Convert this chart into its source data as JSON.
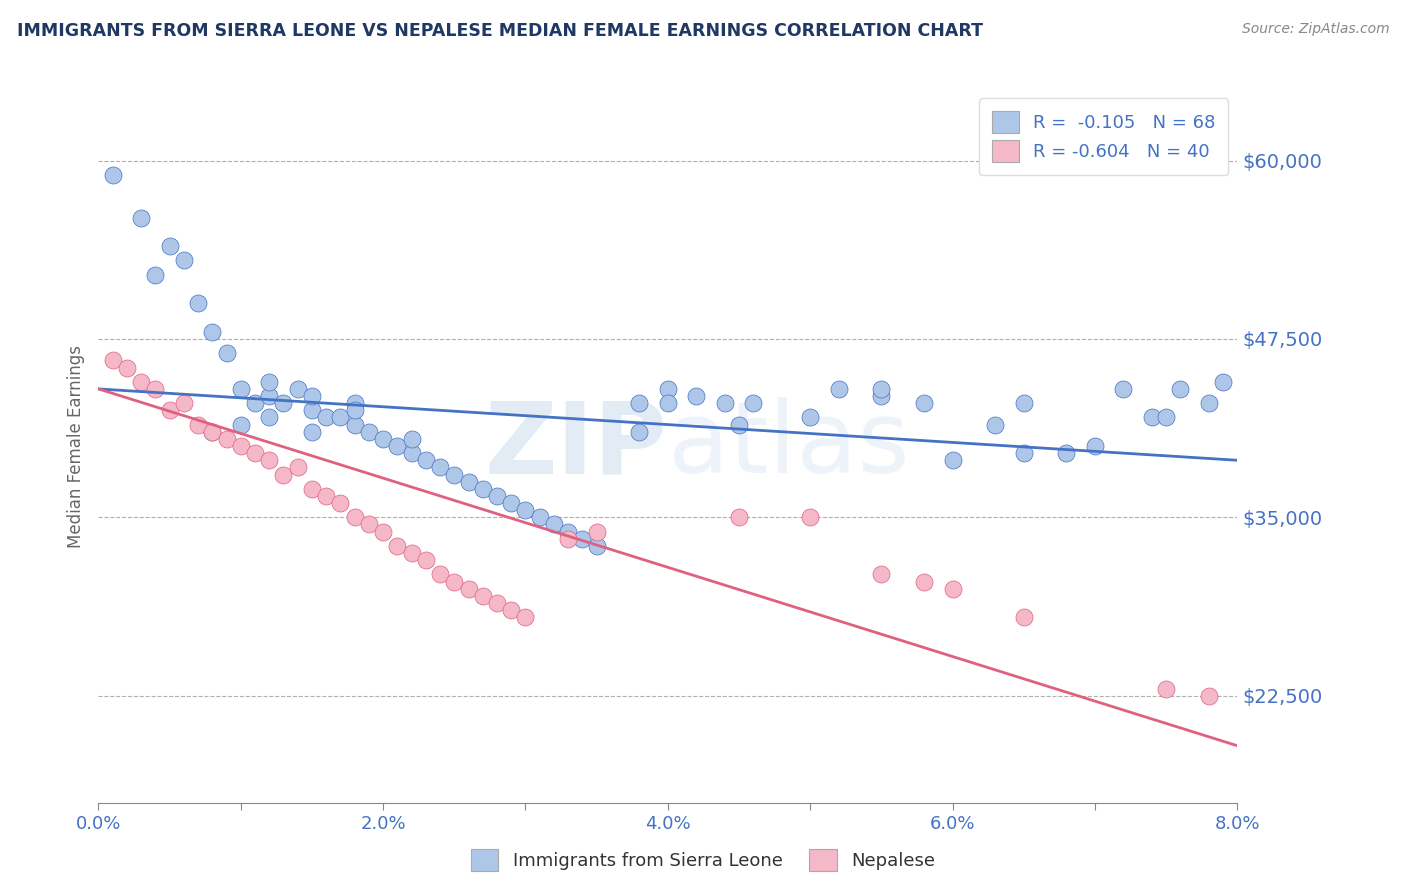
{
  "title": "IMMIGRANTS FROM SIERRA LEONE VS NEPALESE MEDIAN FEMALE EARNINGS CORRELATION CHART",
  "source": "Source: ZipAtlas.com",
  "ylabel": "Median Female Earnings",
  "xmin": 0.0,
  "xmax": 0.08,
  "ymin": 15000,
  "ymax": 65000,
  "yticks": [
    22500,
    35000,
    47500,
    60000
  ],
  "ytick_labels": [
    "$22,500",
    "$35,000",
    "$47,500",
    "$60,000"
  ],
  "xticks": [
    0.0,
    0.01,
    0.02,
    0.03,
    0.04,
    0.05,
    0.06,
    0.07,
    0.08
  ],
  "xtick_labels": [
    "0.0%",
    "",
    "2.0%",
    "",
    "4.0%",
    "",
    "6.0%",
    "",
    "8.0%"
  ],
  "blue_color": "#aec6e8",
  "blue_line_color": "#4472c4",
  "pink_color": "#f4b8c8",
  "pink_line_color": "#e06080",
  "legend_R1": "-0.105",
  "legend_N1": "68",
  "legend_R2": "-0.604",
  "legend_N2": "40",
  "legend_label1": "Immigrants from Sierra Leone",
  "legend_label2": "Nepalese",
  "blue_trend_x": [
    0.0,
    0.08
  ],
  "blue_trend_y": [
    44000,
    39000
  ],
  "pink_trend_x": [
    0.0,
    0.08
  ],
  "pink_trend_y": [
    44000,
    19000
  ],
  "watermark_line1": "ZIP",
  "watermark_line2": "atlas",
  "title_color": "#1f3864",
  "axis_label_color": "#4472c4",
  "background_color": "#ffffff",
  "grid_color": "#b0b0b0",
  "blue_scatter_x": [
    0.001,
    0.003,
    0.004,
    0.005,
    0.006,
    0.007,
    0.008,
    0.009,
    0.01,
    0.011,
    0.012,
    0.012,
    0.013,
    0.014,
    0.015,
    0.015,
    0.016,
    0.017,
    0.018,
    0.018,
    0.019,
    0.02,
    0.021,
    0.022,
    0.023,
    0.024,
    0.025,
    0.026,
    0.027,
    0.028,
    0.029,
    0.03,
    0.031,
    0.032,
    0.033,
    0.034,
    0.035,
    0.038,
    0.04,
    0.042,
    0.044,
    0.046,
    0.05,
    0.052,
    0.055,
    0.058,
    0.06,
    0.063,
    0.065,
    0.068,
    0.07,
    0.072,
    0.074,
    0.075,
    0.076,
    0.078,
    0.079,
    0.008,
    0.01,
    0.012,
    0.015,
    0.018,
    0.022,
    0.038,
    0.04,
    0.045,
    0.055,
    0.065
  ],
  "blue_scatter_y": [
    59000,
    56000,
    52000,
    54000,
    53000,
    50000,
    48000,
    46500,
    44000,
    43000,
    43500,
    44500,
    43000,
    44000,
    42500,
    43500,
    42000,
    42000,
    41500,
    43000,
    41000,
    40500,
    40000,
    39500,
    39000,
    38500,
    38000,
    37500,
    37000,
    36500,
    36000,
    35500,
    35000,
    34500,
    34000,
    33500,
    33000,
    43000,
    44000,
    43500,
    43000,
    43000,
    42000,
    44000,
    43500,
    43000,
    39000,
    41500,
    43000,
    39500,
    40000,
    44000,
    42000,
    42000,
    44000,
    43000,
    44500,
    41000,
    41500,
    42000,
    41000,
    42500,
    40500,
    41000,
    43000,
    41500,
    44000,
    39500
  ],
  "pink_scatter_x": [
    0.001,
    0.002,
    0.003,
    0.004,
    0.005,
    0.006,
    0.007,
    0.008,
    0.009,
    0.01,
    0.011,
    0.012,
    0.013,
    0.014,
    0.015,
    0.016,
    0.017,
    0.018,
    0.019,
    0.02,
    0.021,
    0.022,
    0.023,
    0.024,
    0.025,
    0.026,
    0.027,
    0.028,
    0.029,
    0.03,
    0.033,
    0.035,
    0.045,
    0.05,
    0.055,
    0.058,
    0.06,
    0.065,
    0.075,
    0.078
  ],
  "pink_scatter_y": [
    46000,
    45500,
    44500,
    44000,
    42500,
    43000,
    41500,
    41000,
    40500,
    40000,
    39500,
    39000,
    38000,
    38500,
    37000,
    36500,
    36000,
    35000,
    34500,
    34000,
    33000,
    32500,
    32000,
    31000,
    30500,
    30000,
    29500,
    29000,
    28500,
    28000,
    33500,
    34000,
    35000,
    35000,
    31000,
    30500,
    30000,
    28000,
    23000,
    22500
  ]
}
